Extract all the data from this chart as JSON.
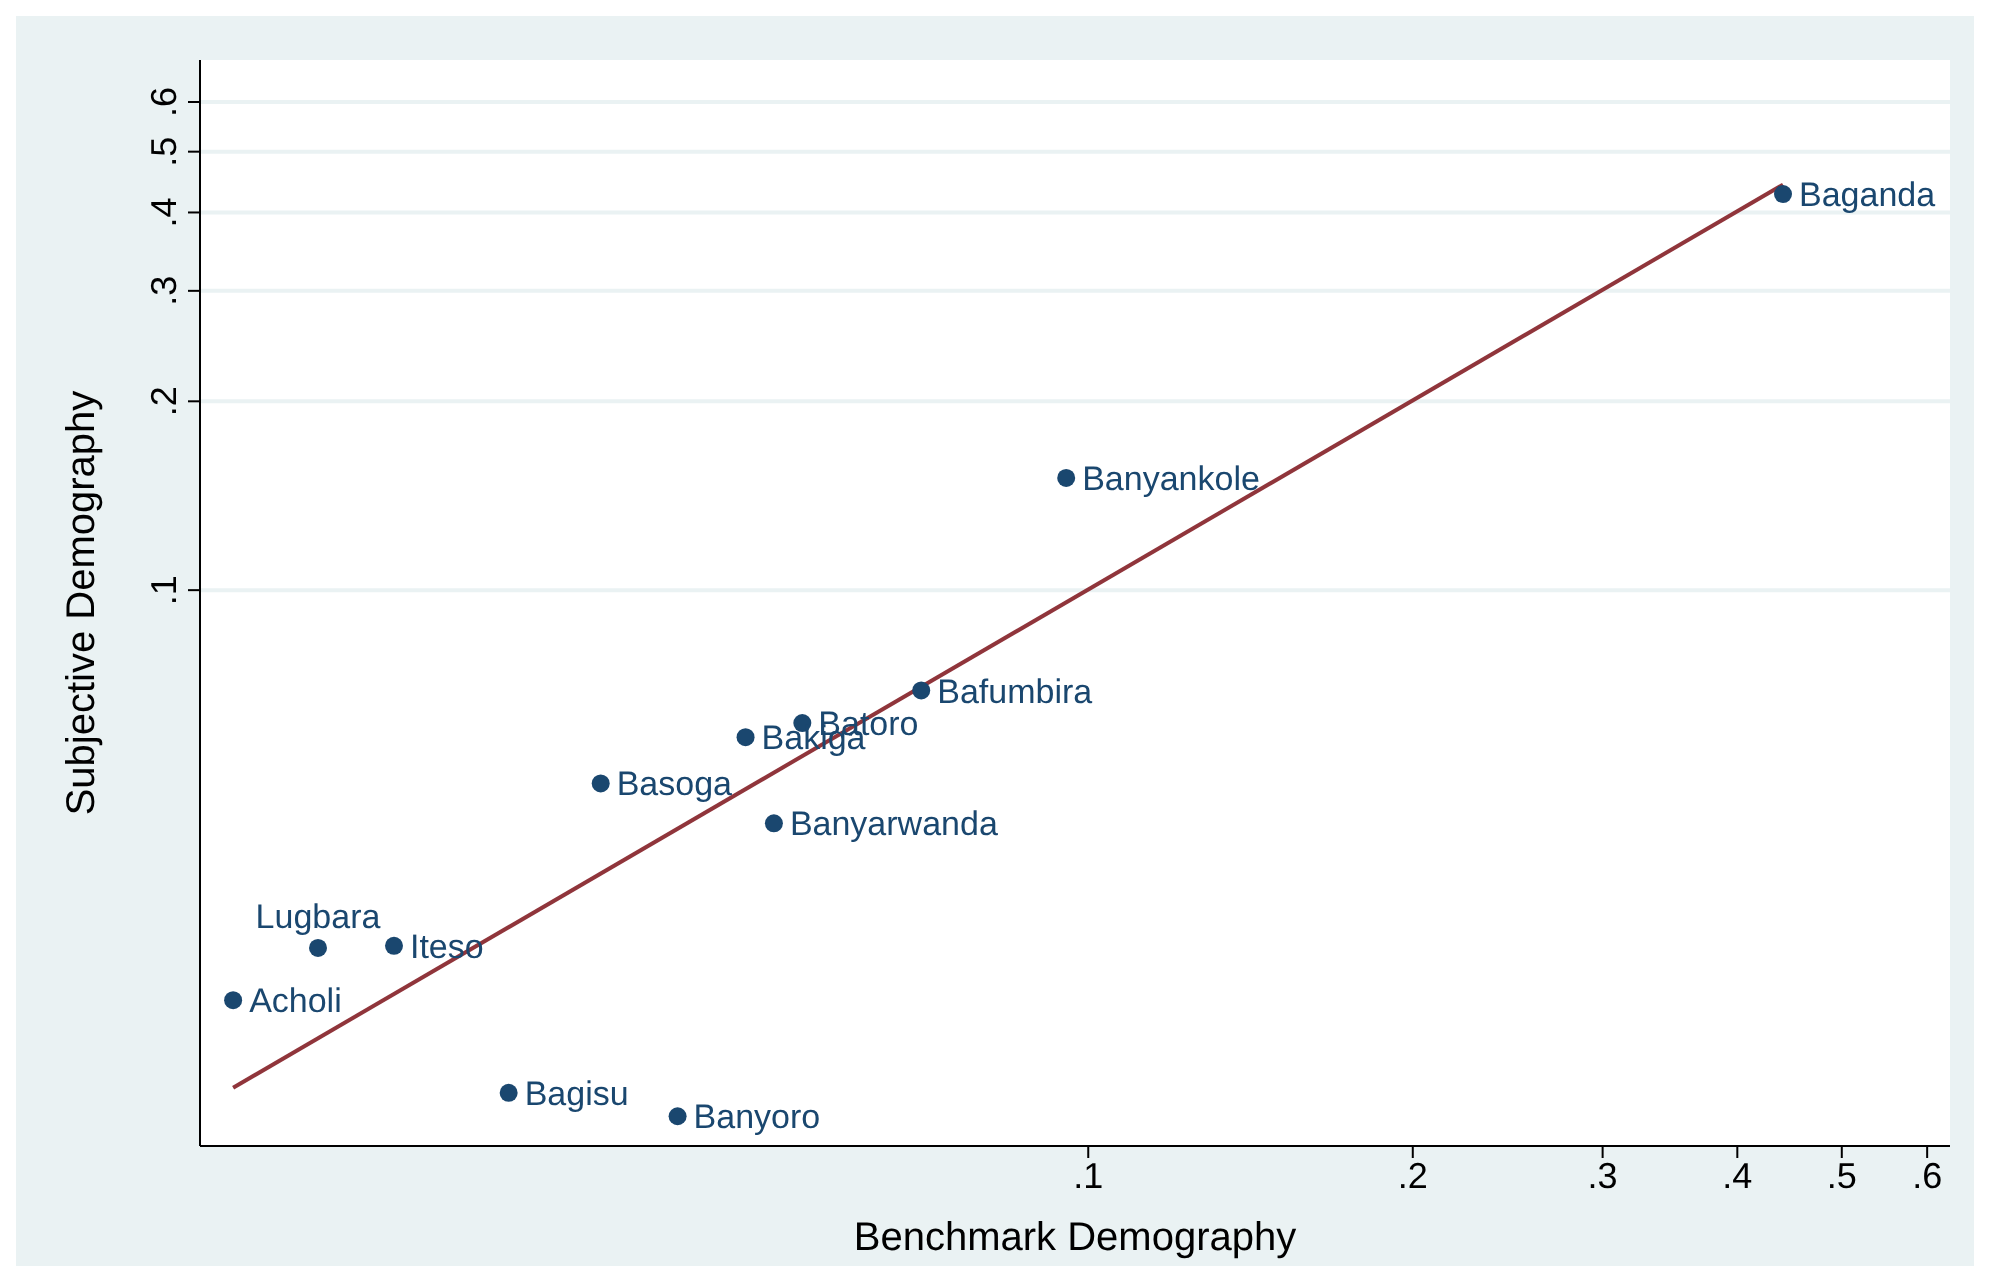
{
  "chart_data": {
    "type": "scatter",
    "xlabel": "Benchmark Demography",
    "ylabel": "Subjective Demography",
    "log": "xy",
    "grid": "y",
    "xlim": [
      0.015,
      0.63
    ],
    "ylim": [
      0.013,
      0.7
    ],
    "xticks": [
      {
        "value": 0.1,
        "label": ".1"
      },
      {
        "value": 0.2,
        "label": ".2"
      },
      {
        "value": 0.3,
        "label": ".3"
      },
      {
        "value": 0.4,
        "label": ".4"
      },
      {
        "value": 0.5,
        "label": ".5"
      },
      {
        "value": 0.6,
        "label": ".6"
      }
    ],
    "yticks": [
      {
        "value": 0.1,
        "label": ".1"
      },
      {
        "value": 0.2,
        "label": ".2"
      },
      {
        "value": 0.3,
        "label": ".3"
      },
      {
        "value": 0.4,
        "label": ".4"
      },
      {
        "value": 0.5,
        "label": ".5"
      },
      {
        "value": 0.6,
        "label": ".6"
      }
    ],
    "series": [
      {
        "marker": "circle",
        "color": "#1a476f",
        "x": [
          0.441,
          0.0954,
          0.07,
          0.0543,
          0.0481,
          0.0353,
          0.0511,
          0.0193,
          0.0227,
          0.0161,
          0.029,
          0.0416
        ],
        "values": [
          0.428,
          0.151,
          0.0692,
          0.0614,
          0.0583,
          0.0492,
          0.0425,
          0.0269,
          0.0271,
          0.0222,
          0.0158,
          0.0145
        ]
      },
      {
        "type": "line",
        "marker": "none",
        "color": "#90353b",
        "x": [
          0.0161,
          0.441
        ],
        "values": [
          0.0161,
          0.443
        ]
      }
    ],
    "annotations": [
      {
        "text": "Baganda",
        "x": 0.441,
        "y": 0.428
      },
      {
        "text": "Banyankole",
        "x": 0.0954,
        "y": 0.151
      },
      {
        "text": "Bafumbira",
        "x": 0.07,
        "y": 0.0692
      },
      {
        "text": "Batoro",
        "x": 0.0543,
        "y": 0.0614
      },
      {
        "text": "Bakiga",
        "x": 0.0481,
        "y": 0.0583
      },
      {
        "text": "Basoga",
        "x": 0.0353,
        "y": 0.0492
      },
      {
        "text": "Banyarwanda",
        "x": 0.0511,
        "y": 0.0425
      },
      {
        "text": "Lugbara",
        "x": 0.0193,
        "y": 0.0269
      },
      {
        "text": "Iteso",
        "x": 0.0227,
        "y": 0.0271
      },
      {
        "text": "Acholi",
        "x": 0.0161,
        "y": 0.0222
      },
      {
        "text": "Bagisu",
        "x": 0.029,
        "y": 0.0158
      },
      {
        "text": "Banyoro",
        "x": 0.0416,
        "y": 0.0145
      }
    ]
  }
}
